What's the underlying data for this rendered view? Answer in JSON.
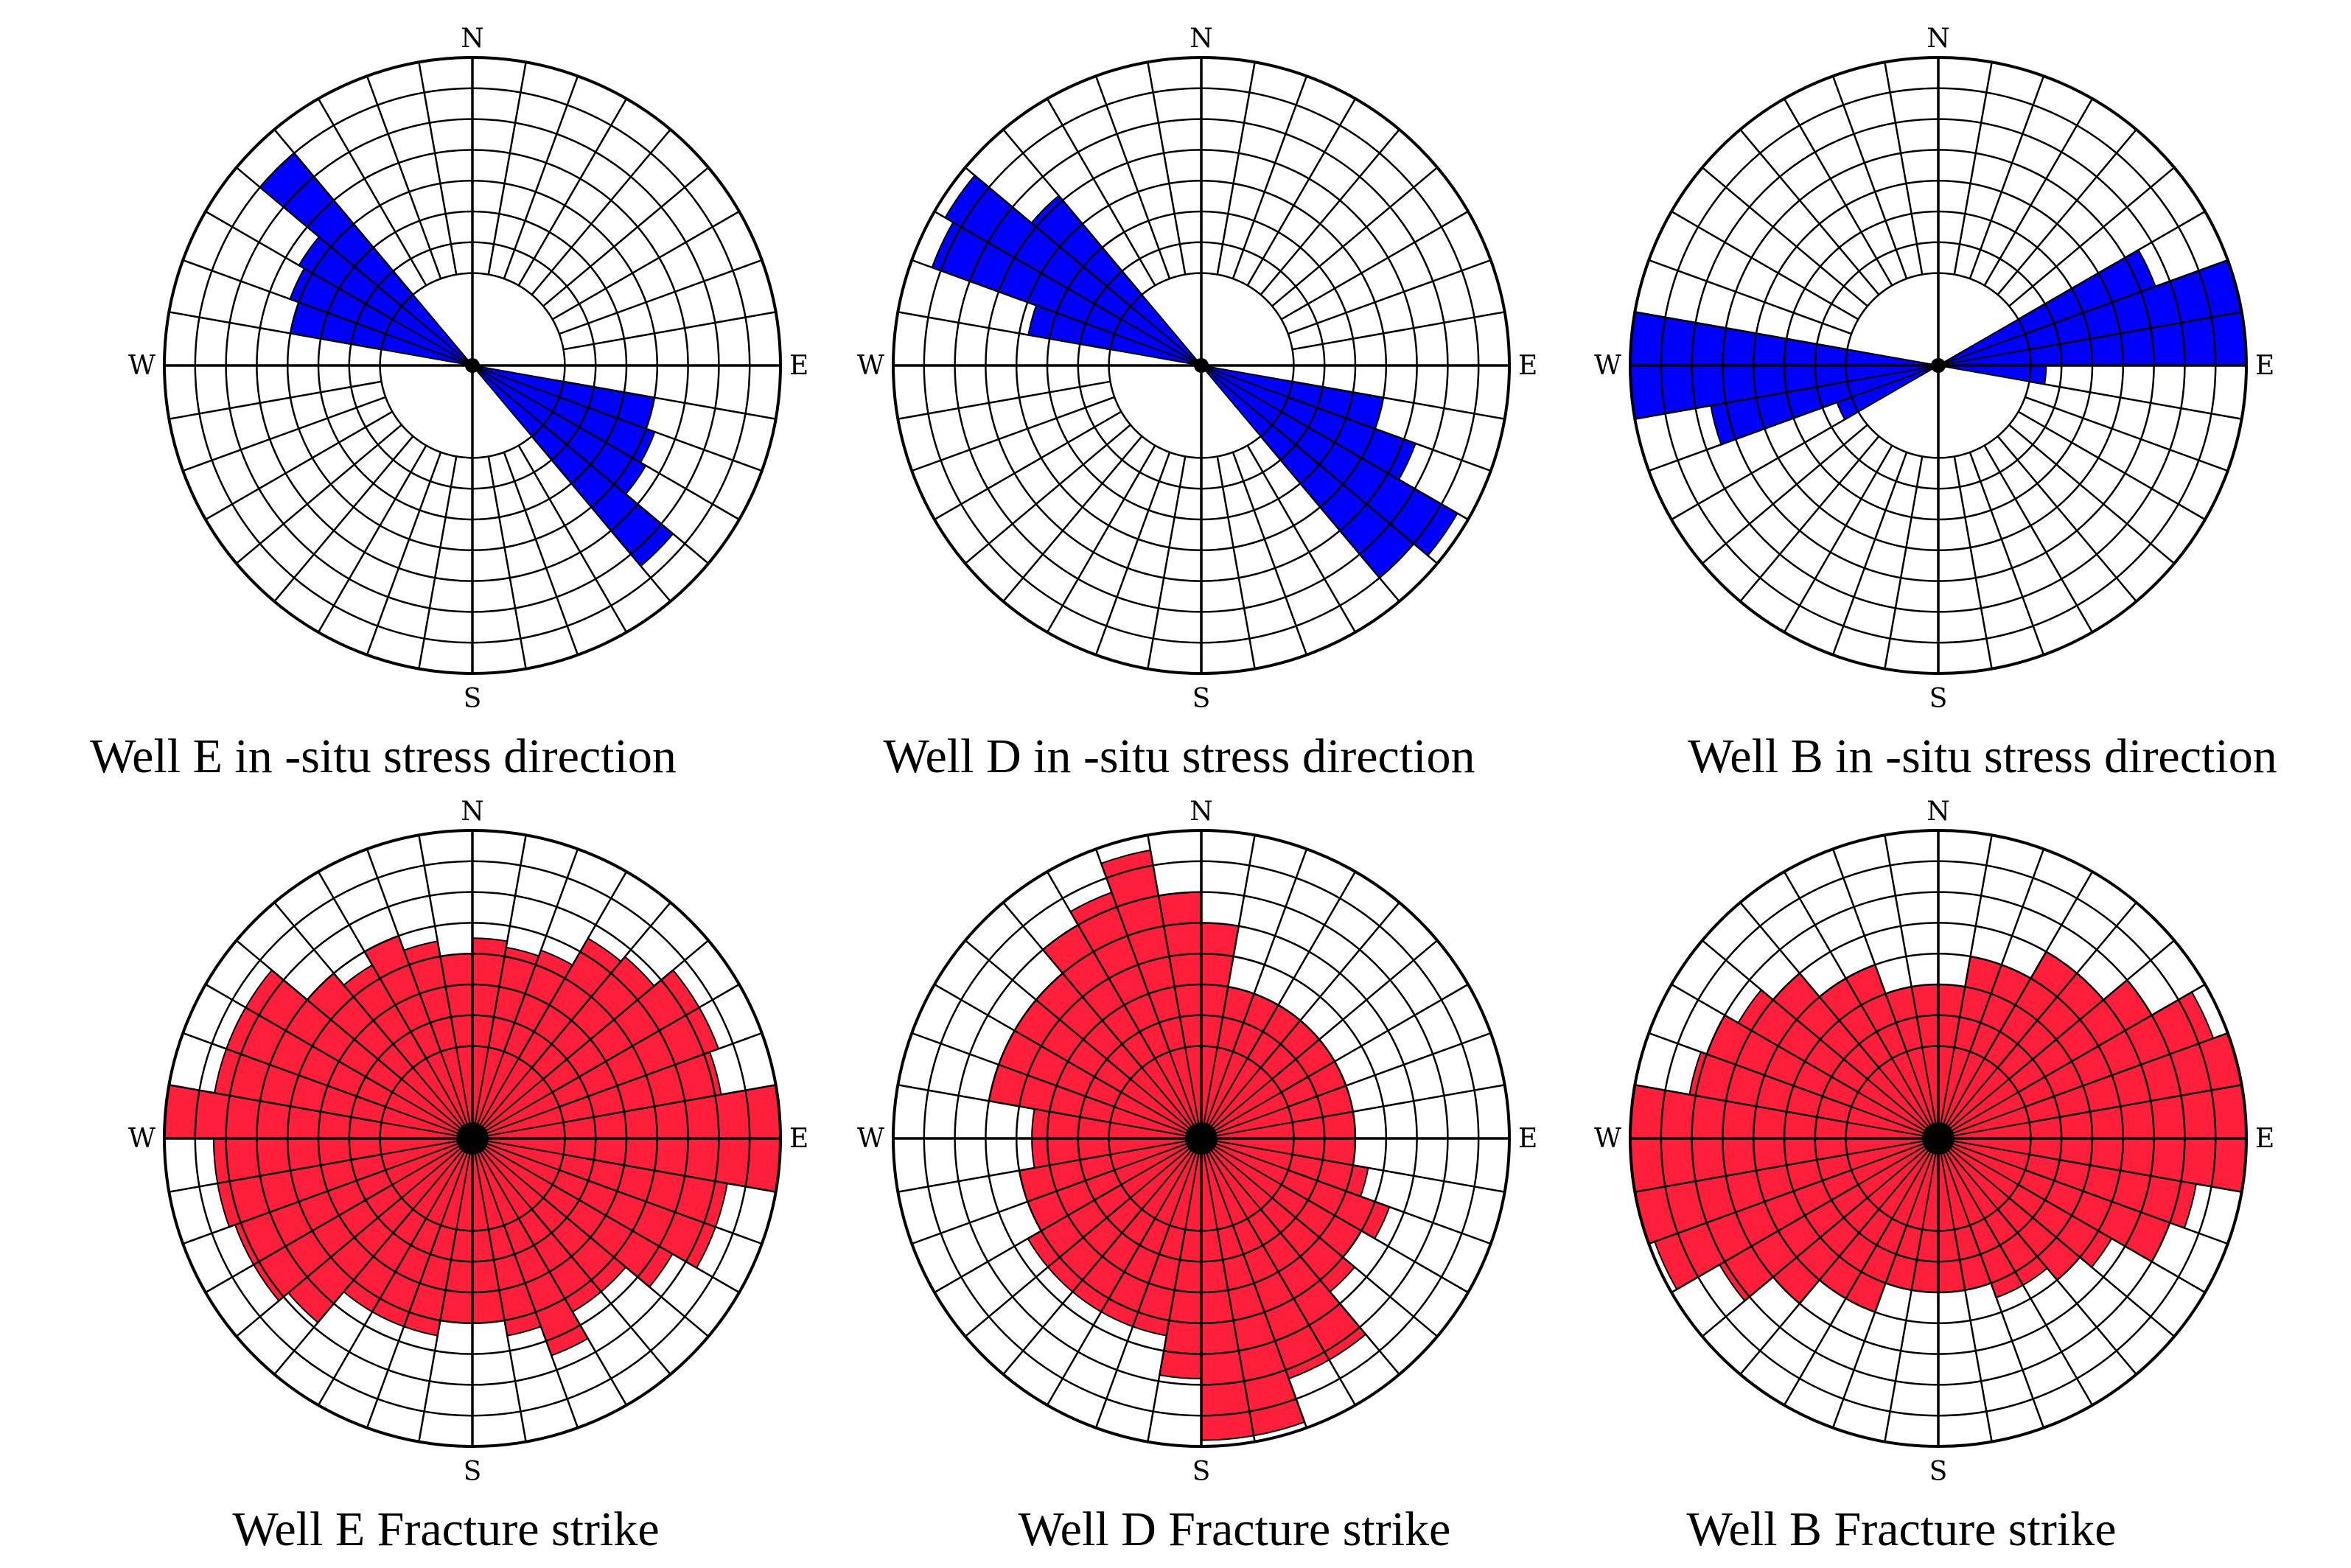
{
  "directions": {
    "north": "N",
    "east": "E",
    "south": "S",
    "west": "W"
  },
  "colors": {
    "stress": "#0000ff",
    "fracture": "#ff1f3a",
    "grid": "#000000",
    "background": "#ffffff"
  },
  "chart_data": [
    {
      "type": "rose",
      "title": "Well E in -situ stress direction",
      "color": "#0000ff",
      "bin_width_deg": 10,
      "rmax": 10,
      "grid_rings": [
        3,
        4,
        5,
        6,
        7,
        8,
        9,
        10
      ],
      "petals": [
        {
          "angle": 285,
          "value": 6.0
        },
        {
          "angle": 295,
          "value": 6.3
        },
        {
          "angle": 305,
          "value": 6.5
        },
        {
          "angle": 315,
          "value": 9.0
        },
        {
          "angle": 105,
          "value": 6.0
        },
        {
          "angle": 115,
          "value": 6.3
        },
        {
          "angle": 125,
          "value": 6.5
        },
        {
          "angle": 135,
          "value": 8.5
        }
      ]
    },
    {
      "type": "rose",
      "title": "Well D in -situ stress direction",
      "color": "#0000ff",
      "bin_width_deg": 10,
      "rmax": 10,
      "grid_rings": [
        3,
        4,
        5,
        6,
        7,
        8,
        9,
        10
      ],
      "petals": [
        {
          "angle": 285,
          "value": 5.7
        },
        {
          "angle": 295,
          "value": 9.3
        },
        {
          "angle": 305,
          "value": 9.6
        },
        {
          "angle": 315,
          "value": 7.2
        },
        {
          "angle": 105,
          "value": 6.0
        },
        {
          "angle": 115,
          "value": 7.4
        },
        {
          "angle": 125,
          "value": 9.6
        },
        {
          "angle": 135,
          "value": 9.0
        }
      ]
    },
    {
      "type": "rose",
      "title": "Well B in -situ stress direction",
      "color": "#0000ff",
      "bin_width_deg": 10,
      "rmax": 10,
      "grid_rings": [
        3,
        4,
        5,
        6,
        7,
        8,
        9,
        10
      ],
      "petals": [
        {
          "angle": 65,
          "value": 7.5
        },
        {
          "angle": 75,
          "value": 10.0
        },
        {
          "angle": 85,
          "value": 10.0
        },
        {
          "angle": 95,
          "value": 3.5
        },
        {
          "angle": 245,
          "value": 3.5
        },
        {
          "angle": 255,
          "value": 7.5
        },
        {
          "angle": 265,
          "value": 10.0
        },
        {
          "angle": 275,
          "value": 10.0
        }
      ]
    },
    {
      "type": "rose",
      "title": "Well E Fracture strike",
      "color": "#ff1f3a",
      "bin_width_deg": 10,
      "rmax": 10,
      "grid_rings": [
        3,
        4,
        5,
        6,
        7,
        8,
        9,
        10
      ],
      "petals": [
        {
          "angle": 5,
          "value": 6.5
        },
        {
          "angle": 15,
          "value": 6.3
        },
        {
          "angle": 25,
          "value": 6.5
        },
        {
          "angle": 35,
          "value": 7.5
        },
        {
          "angle": 45,
          "value": 7.7
        },
        {
          "angle": 55,
          "value": 8.5
        },
        {
          "angle": 65,
          "value": 8.5
        },
        {
          "angle": 75,
          "value": 8.2
        },
        {
          "angle": 85,
          "value": 10.0
        },
        {
          "angle": 95,
          "value": 10.0
        },
        {
          "angle": 105,
          "value": 8.4
        },
        {
          "angle": 115,
          "value": 8.4
        },
        {
          "angle": 125,
          "value": 7.5
        },
        {
          "angle": 135,
          "value": 6.5
        },
        {
          "angle": 145,
          "value": 6.5
        },
        {
          "angle": 155,
          "value": 7.5
        },
        {
          "angle": 165,
          "value": 6.5
        },
        {
          "angle": 175,
          "value": 6.0
        },
        {
          "angle": 185,
          "value": 6.0
        },
        {
          "angle": 195,
          "value": 6.5
        },
        {
          "angle": 205,
          "value": 6.5
        },
        {
          "angle": 215,
          "value": 6.5
        },
        {
          "angle": 225,
          "value": 7.8
        },
        {
          "angle": 235,
          "value": 8.2
        },
        {
          "angle": 245,
          "value": 8.2
        },
        {
          "angle": 255,
          "value": 8.4
        },
        {
          "angle": 265,
          "value": 8.4
        },
        {
          "angle": 275,
          "value": 10.0
        },
        {
          "angle": 285,
          "value": 8.5
        },
        {
          "angle": 295,
          "value": 8.5
        },
        {
          "angle": 305,
          "value": 8.5
        },
        {
          "angle": 315,
          "value": 7.0
        },
        {
          "angle": 325,
          "value": 6.5
        },
        {
          "angle": 335,
          "value": 7.0
        },
        {
          "angle": 345,
          "value": 6.5
        },
        {
          "angle": 355,
          "value": 6.0
        }
      ]
    },
    {
      "type": "rose",
      "title": "Well D Fracture strike",
      "color": "#ff1f3a",
      "bin_width_deg": 10,
      "rmax": 10,
      "grid_rings": [
        3,
        4,
        5,
        6,
        7,
        8,
        9,
        10
      ],
      "petals": [
        {
          "angle": 5,
          "value": 7.0
        },
        {
          "angle": 15,
          "value": 5.0
        },
        {
          "angle": 25,
          "value": 5.0
        },
        {
          "angle": 35,
          "value": 5.0
        },
        {
          "angle": 45,
          "value": 5.0
        },
        {
          "angle": 55,
          "value": 5.0
        },
        {
          "angle": 65,
          "value": 5.0
        },
        {
          "angle": 75,
          "value": 5.0
        },
        {
          "angle": 85,
          "value": 5.0
        },
        {
          "angle": 95,
          "value": 5.0
        },
        {
          "angle": 105,
          "value": 5.5
        },
        {
          "angle": 115,
          "value": 6.5
        },
        {
          "angle": 125,
          "value": 6.0
        },
        {
          "angle": 135,
          "value": 6.5
        },
        {
          "angle": 145,
          "value": 8.3
        },
        {
          "angle": 155,
          "value": 8.3
        },
        {
          "angle": 165,
          "value": 9.8
        },
        {
          "angle": 175,
          "value": 9.8
        },
        {
          "angle": 185,
          "value": 7.8
        },
        {
          "angle": 195,
          "value": 6.5
        },
        {
          "angle": 205,
          "value": 6.5
        },
        {
          "angle": 215,
          "value": 6.5
        },
        {
          "angle": 225,
          "value": 6.5
        },
        {
          "angle": 235,
          "value": 6.5
        },
        {
          "angle": 245,
          "value": 6.0
        },
        {
          "angle": 255,
          "value": 6.0
        },
        {
          "angle": 265,
          "value": 5.5
        },
        {
          "angle": 275,
          "value": 5.5
        },
        {
          "angle": 285,
          "value": 7.0
        },
        {
          "angle": 295,
          "value": 7.0
        },
        {
          "angle": 305,
          "value": 7.0
        },
        {
          "angle": 315,
          "value": 7.0
        },
        {
          "angle": 325,
          "value": 8.0
        },
        {
          "angle": 335,
          "value": 8.5
        },
        {
          "angle": 345,
          "value": 9.5
        },
        {
          "angle": 355,
          "value": 8.0
        }
      ]
    },
    {
      "type": "rose",
      "title": "Well B Fracture strike",
      "color": "#ff1f3a",
      "bin_width_deg": 10,
      "rmax": 10,
      "grid_rings": [
        3,
        4,
        5,
        6,
        7,
        8,
        9,
        10
      ],
      "petals": [
        {
          "angle": 5,
          "value": 5.0
        },
        {
          "angle": 15,
          "value": 6.0
        },
        {
          "angle": 25,
          "value": 6.0
        },
        {
          "angle": 35,
          "value": 7.0
        },
        {
          "angle": 45,
          "value": 7.0
        },
        {
          "angle": 55,
          "value": 8.0
        },
        {
          "angle": 65,
          "value": 9.5
        },
        {
          "angle": 75,
          "value": 10.0
        },
        {
          "angle": 85,
          "value": 10.0
        },
        {
          "angle": 95,
          "value": 10.0
        },
        {
          "angle": 105,
          "value": 8.5
        },
        {
          "angle": 115,
          "value": 8.0
        },
        {
          "angle": 125,
          "value": 6.5
        },
        {
          "angle": 135,
          "value": 6.0
        },
        {
          "angle": 145,
          "value": 5.5
        },
        {
          "angle": 155,
          "value": 5.5
        },
        {
          "angle": 165,
          "value": 5.0
        },
        {
          "angle": 175,
          "value": 5.0
        },
        {
          "angle": 185,
          "value": 5.0
        },
        {
          "angle": 195,
          "value": 5.0
        },
        {
          "angle": 205,
          "value": 6.0
        },
        {
          "angle": 215,
          "value": 6.0
        },
        {
          "angle": 225,
          "value": 7.0
        },
        {
          "angle": 235,
          "value": 8.2
        },
        {
          "angle": 245,
          "value": 9.8
        },
        {
          "angle": 255,
          "value": 10.0
        },
        {
          "angle": 265,
          "value": 10.0
        },
        {
          "angle": 275,
          "value": 10.0
        },
        {
          "angle": 285,
          "value": 8.2
        },
        {
          "angle": 295,
          "value": 8.0
        },
        {
          "angle": 305,
          "value": 7.5
        },
        {
          "angle": 315,
          "value": 7.0
        },
        {
          "angle": 325,
          "value": 6.0
        },
        {
          "angle": 335,
          "value": 6.0
        },
        {
          "angle": 345,
          "value": 5.0
        },
        {
          "angle": 355,
          "value": 5.0
        }
      ]
    }
  ]
}
